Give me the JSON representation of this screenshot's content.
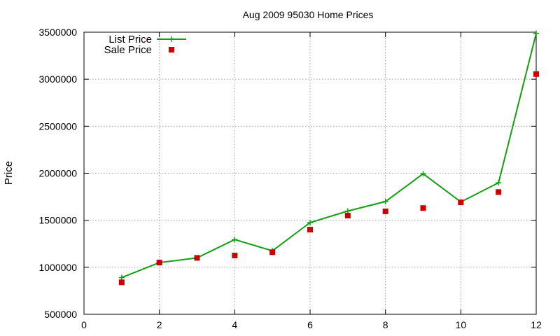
{
  "chart_data": {
    "type": "line",
    "title": "Aug 2009 95030 Home Prices",
    "xlabel": "",
    "ylabel": "Price",
    "xlim": [
      0,
      12
    ],
    "ylim": [
      500000,
      3500000
    ],
    "x_ticks": [
      0,
      2,
      4,
      6,
      8,
      10,
      12
    ],
    "y_ticks": [
      500000,
      1000000,
      1500000,
      2000000,
      2500000,
      3000000,
      3500000
    ],
    "grid": true,
    "legend_position": "top-left",
    "series": [
      {
        "name": "List Price",
        "style": "line-plus",
        "color": "#11a011",
        "x": [
          1,
          2,
          3,
          4,
          5,
          6,
          7,
          8,
          9,
          10,
          11,
          12
        ],
        "values": [
          890000,
          1050000,
          1100000,
          1295000,
          1175000,
          1475000,
          1598000,
          1699000,
          1995000,
          1695000,
          1899000,
          3488000
        ]
      },
      {
        "name": "Sale Price",
        "style": "square-points",
        "color": "#cc0000",
        "x": [
          1,
          2,
          3,
          4,
          5,
          6,
          7,
          8,
          9,
          10,
          11,
          12
        ],
        "values": [
          840000,
          1050000,
          1100000,
          1125000,
          1160000,
          1400000,
          1550000,
          1595000,
          1630000,
          1690000,
          1800000,
          3055000
        ]
      }
    ]
  }
}
